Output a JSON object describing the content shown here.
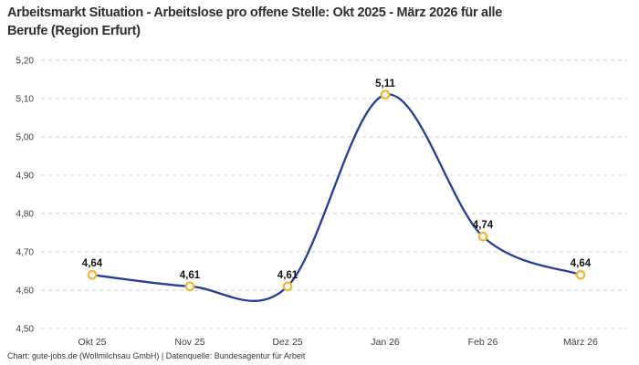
{
  "title": "Arbeitsmarkt Situation - Arbeitslose pro offene Stelle: Okt 2025 - März 2026 für alle\nBerufe (Region Erfurt)",
  "footer": "Chart: gute-jobs.de (Wollmilchsau GmbH) | Datenquelle: Bundesagentur für Arbeit",
  "chart_data": {
    "type": "line",
    "title": "Arbeitsmarkt Situation - Arbeitslose pro offene Stelle: Okt 2025 - März 2026 für alle Berufe (Region Erfurt)",
    "categories": [
      "Okt 25",
      "Nov 25",
      "Dez 25",
      "Jan 26",
      "Feb 26",
      "März 26"
    ],
    "values": [
      4.64,
      4.61,
      4.61,
      5.11,
      4.74,
      4.64
    ],
    "data_labels": [
      "4,64",
      "4,61",
      "4,61",
      "5,11",
      "4,74",
      "4,64"
    ],
    "y_ticks": [
      "4,50",
      "4,60",
      "4,70",
      "4,80",
      "4,90",
      "5,00",
      "5,10",
      "5,20"
    ],
    "ylim": [
      4.5,
      5.2
    ],
    "xlabel": "",
    "ylabel": "",
    "grid": "horizontal-dashed",
    "legend": "none",
    "line_color": "#233c9b",
    "marker_stroke_color": "#f2b83d",
    "marker_fill_color": "#ffffff",
    "gridline_color": "#cccccc",
    "tick_label_color": "#3c3c3c",
    "data_label_color": "#141414"
  }
}
